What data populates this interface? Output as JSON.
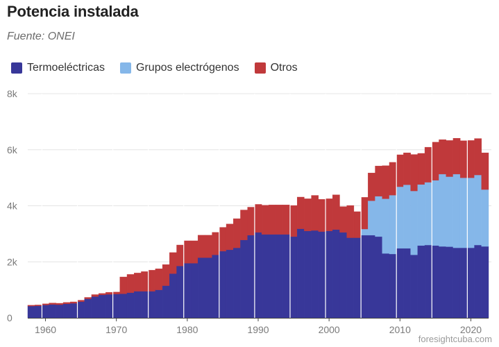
{
  "header": {
    "title": "Potencia instalada",
    "subtitle": "Fuente: ONEI"
  },
  "legend": [
    {
      "label": "Termoeléctricas",
      "color": "#383799"
    },
    {
      "label": "Grupos electrógenos",
      "color": "#85b7e9"
    },
    {
      "label": "Otros",
      "color": "#c0393b"
    }
  ],
  "credit": "foresightcuba.com",
  "chart_data": {
    "type": "bar",
    "stacked": true,
    "title": "Potencia instalada",
    "xlabel": "",
    "ylabel": "",
    "ylim": [
      0,
      8000
    ],
    "y_ticks": [
      0,
      2000,
      4000,
      6000,
      8000
    ],
    "y_tick_labels": [
      "0",
      "2k",
      "4k",
      "6k",
      "8k"
    ],
    "x_ticks": [
      1960,
      1970,
      1980,
      1990,
      2000,
      2010,
      2020
    ],
    "grid": true,
    "categories": [
      1958,
      1959,
      1960,
      1961,
      1962,
      1963,
      1964,
      1965,
      1966,
      1967,
      1968,
      1969,
      1970,
      1971,
      1972,
      1973,
      1974,
      1975,
      1976,
      1977,
      1978,
      1979,
      1980,
      1981,
      1982,
      1983,
      1984,
      1985,
      1986,
      1987,
      1988,
      1989,
      1990,
      1991,
      1992,
      1993,
      1994,
      1995,
      1996,
      1997,
      1998,
      1999,
      2000,
      2001,
      2002,
      2003,
      2004,
      2005,
      2006,
      2007,
      2008,
      2009,
      2010,
      2011,
      2012,
      2013,
      2014,
      2015,
      2016,
      2017,
      2018,
      2019,
      2020,
      2021,
      2022
    ],
    "series": [
      {
        "name": "Termoeléctricas",
        "color": "#383799",
        "values": [
          420,
          430,
          460,
          480,
          470,
          500,
          520,
          580,
          680,
          760,
          820,
          840,
          850,
          860,
          900,
          950,
          950,
          950,
          1000,
          1150,
          1580,
          1850,
          1950,
          1950,
          2150,
          2150,
          2250,
          2380,
          2430,
          2500,
          2780,
          2950,
          3050,
          2980,
          2980,
          2980,
          2980,
          2900,
          3180,
          3100,
          3120,
          3080,
          3100,
          3150,
          3050,
          2860,
          2860,
          2950,
          2950,
          2900,
          2300,
          2280,
          2480,
          2480,
          2250,
          2580,
          2600,
          2580,
          2550,
          2540,
          2500,
          2500,
          2500,
          2600,
          2550
        ]
      },
      {
        "name": "Grupos electrógenos",
        "color": "#85b7e9",
        "values": [
          0,
          0,
          0,
          0,
          0,
          0,
          0,
          0,
          0,
          0,
          0,
          0,
          0,
          0,
          0,
          0,
          0,
          0,
          0,
          0,
          0,
          0,
          0,
          0,
          0,
          0,
          0,
          0,
          0,
          0,
          0,
          0,
          0,
          0,
          0,
          0,
          0,
          0,
          0,
          0,
          0,
          0,
          0,
          0,
          0,
          0,
          0,
          220,
          1230,
          1440,
          1950,
          2100,
          2200,
          2270,
          2280,
          2180,
          2240,
          2330,
          2580,
          2500,
          2630,
          2500,
          2500,
          2500,
          2030
        ]
      },
      {
        "name": "Otros",
        "color": "#c0393b",
        "values": [
          30,
          30,
          40,
          50,
          50,
          50,
          50,
          50,
          50,
          70,
          50,
          70,
          70,
          600,
          650,
          650,
          700,
          750,
          750,
          750,
          750,
          750,
          800,
          800,
          800,
          800,
          800,
          850,
          920,
          1040,
          1070,
          1000,
          1000,
          1040,
          1050,
          1050,
          1050,
          1110,
          1130,
          1150,
          1250,
          1150,
          1150,
          1240,
          920,
          1150,
          930,
          1130,
          990,
          1080,
          1180,
          1170,
          1140,
          1140,
          1300,
          1110,
          1250,
          1360,
          1230,
          1290,
          1280,
          1320,
          1330,
          1300,
          1310
        ]
      }
    ]
  }
}
